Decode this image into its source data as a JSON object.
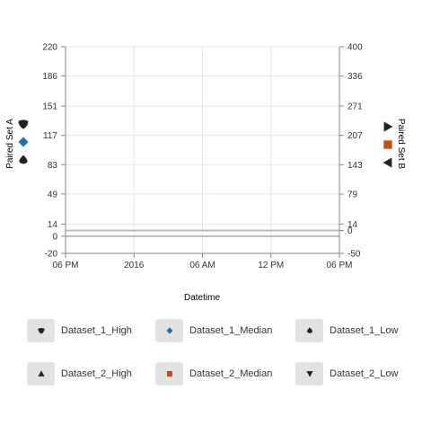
{
  "chart_data": {
    "type": "line",
    "x_axis": {
      "title": "Datetime",
      "tick_labels": [
        "06 PM",
        "2016",
        "06 AM",
        "12 PM",
        "06 PM"
      ]
    },
    "y_axis_left": {
      "title": "Paired Set A",
      "range": [
        -20,
        220
      ],
      "tick_values": [
        220,
        186,
        151,
        117,
        83,
        49,
        14,
        0,
        -20
      ],
      "tick_labels": [
        "220",
        "186",
        "151",
        "117",
        "83",
        "49",
        "14",
        "0",
        "-20"
      ]
    },
    "y_axis_right": {
      "title": "Paired Set B",
      "range": [
        -50,
        400
      ],
      "tick_values": [
        400,
        336,
        271,
        207,
        143,
        79,
        14,
        0,
        -50
      ],
      "tick_labels": [
        "400",
        "336",
        "271",
        "207",
        "143",
        "79",
        "14",
        "0",
        "-50"
      ]
    },
    "grid": true,
    "legend_position": "bottom",
    "series": [
      {
        "name": "Dataset_1_High",
        "axis": "left",
        "symbol": "shield-icon",
        "color": "#222222"
      },
      {
        "name": "Dataset_1_Median",
        "axis": "left",
        "symbol": "diamond-icon",
        "color": "#1f6fa8"
      },
      {
        "name": "Dataset_1_Low",
        "axis": "left",
        "symbol": "drop-icon",
        "color": "#222222"
      },
      {
        "name": "Dataset_2_High",
        "axis": "right",
        "symbol": "triangle-up-icon",
        "color": "#222222"
      },
      {
        "name": "Dataset_2_Median",
        "axis": "right",
        "symbol": "square-icon",
        "color": "#c0500f"
      },
      {
        "name": "Dataset_2_Low",
        "axis": "right",
        "symbol": "triangle-down-icon",
        "color": "#222222"
      }
    ],
    "reference_lines": [
      {
        "axis": "left",
        "value": 0
      },
      {
        "axis": "right",
        "value": 0
      }
    ]
  }
}
